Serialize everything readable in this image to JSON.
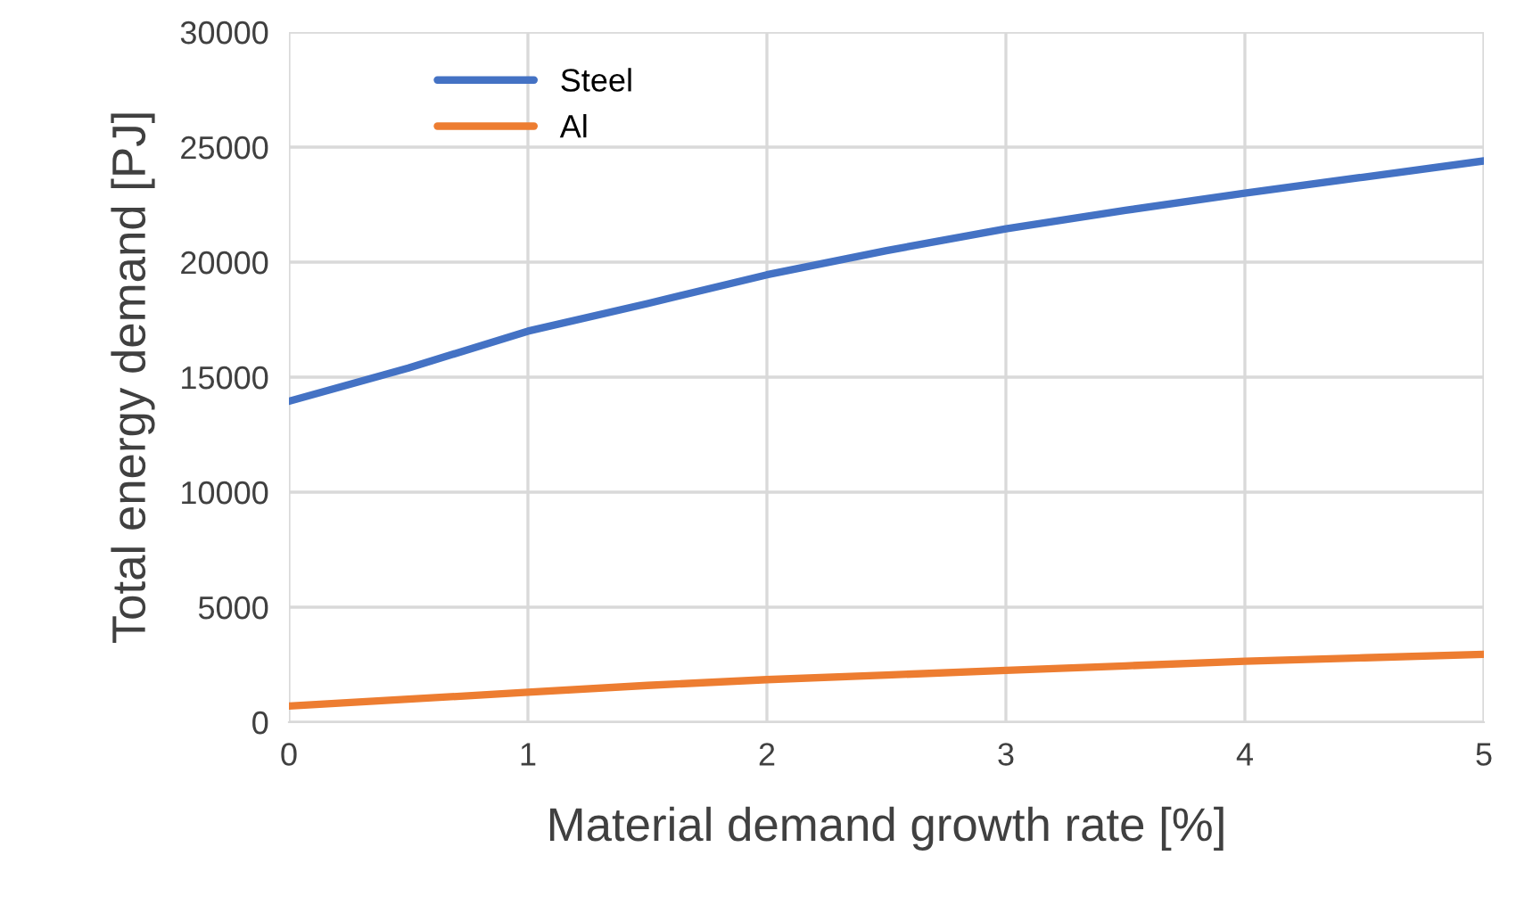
{
  "chart_data": {
    "type": "line",
    "xlabel": "Material demand growth rate [%]",
    "ylabel": "Total energy demand [PJ]",
    "x": [
      0,
      0.5,
      1,
      1.5,
      2,
      2.5,
      3,
      3.5,
      4,
      4.5,
      5
    ],
    "series": [
      {
        "name": "Steel",
        "color": "#4472c4",
        "values": [
          13950,
          15400,
          17000,
          18200,
          19450,
          20500,
          21450,
          22250,
          23000,
          23700,
          24400
        ]
      },
      {
        "name": "Al",
        "color": "#ed7d31",
        "values": [
          700,
          1000,
          1300,
          1600,
          1850,
          2050,
          2250,
          2450,
          2650,
          2800,
          2950
        ]
      }
    ],
    "xlim": [
      0,
      5
    ],
    "xticks": [
      0,
      1,
      2,
      3,
      4,
      5
    ],
    "ylim": [
      0,
      30000
    ],
    "yticks": [
      0,
      5000,
      10000,
      15000,
      20000,
      25000,
      30000
    ],
    "grid": true,
    "legend": "top left",
    "marker": "none",
    "line_style": "solid"
  }
}
